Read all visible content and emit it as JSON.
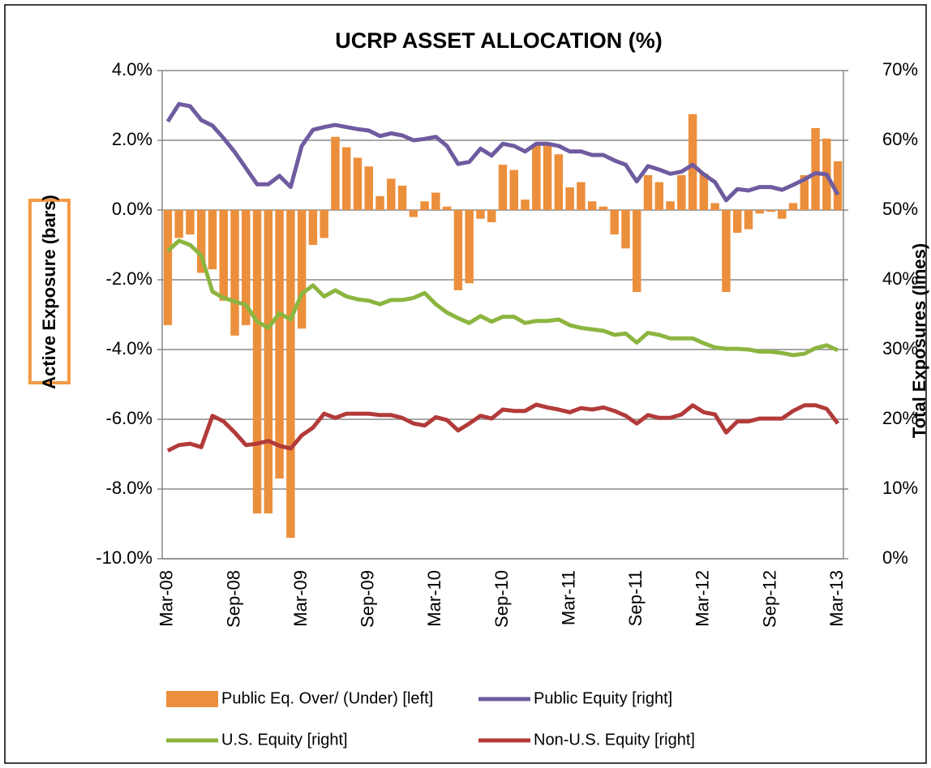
{
  "chart_data": {
    "type": "combo",
    "title": "UCRP ASSET ALLOCATION (%)",
    "y_label": "Active Exposure (bars)",
    "y2_label": "Total Exposures (lines)",
    "categories": [
      "Mar-08",
      null,
      null,
      null,
      null,
      null,
      "Sep-08",
      null,
      null,
      null,
      null,
      null,
      "Mar-09",
      null,
      null,
      null,
      null,
      null,
      "Sep-09",
      null,
      null,
      null,
      null,
      null,
      "Mar-10",
      null,
      null,
      null,
      null,
      null,
      "Sep-10",
      null,
      null,
      null,
      null,
      null,
      "Mar-11",
      null,
      null,
      null,
      null,
      null,
      "Sep-11",
      null,
      null,
      null,
      null,
      null,
      "Mar-12",
      null,
      null,
      null,
      null,
      null,
      "Sep-12",
      null,
      null,
      null,
      null,
      null,
      "Mar-13"
    ],
    "ylim": [
      -10,
      4
    ],
    "yticks": [
      {
        "value": -10,
        "label": "-10.0%"
      },
      {
        "value": -8,
        "label": "-8.0%"
      },
      {
        "value": -6,
        "label": "-6.0%"
      },
      {
        "value": -4,
        "label": "-4.0%"
      },
      {
        "value": -2,
        "label": "-2.0%"
      },
      {
        "value": 0,
        "label": "0.0%"
      },
      {
        "value": 2,
        "label": "2.0%"
      },
      {
        "value": 4,
        "label": "4.0%"
      }
    ],
    "y2lim": [
      0,
      70
    ],
    "y2ticks": [
      {
        "value": 0,
        "label": "0%"
      },
      {
        "value": 10,
        "label": "10%"
      },
      {
        "value": 20,
        "label": "20%"
      },
      {
        "value": 30,
        "label": "30%"
      },
      {
        "value": 40,
        "label": "40%"
      },
      {
        "value": 50,
        "label": "50%"
      },
      {
        "value": 60,
        "label": "60%"
      },
      {
        "value": 70,
        "label": "70%"
      }
    ],
    "grid": true,
    "legend": "bottom",
    "series": [
      {
        "name": "Public Eq. Over/ (Under) [left]",
        "type": "bar",
        "axis": "y",
        "color": "#ec8f3c",
        "values": [
          -3.3,
          -0.8,
          -0.7,
          -1.8,
          -1.7,
          -2.6,
          -3.6,
          -3.3,
          -8.7,
          -8.7,
          -7.7,
          -9.4,
          -3.4,
          -1.0,
          -0.8,
          2.1,
          1.8,
          1.5,
          1.25,
          0.4,
          0.9,
          0.7,
          -0.2,
          0.25,
          0.5,
          0.1,
          -2.3,
          -2.1,
          -0.25,
          -0.35,
          1.3,
          1.15,
          0.3,
          1.9,
          1.85,
          1.6,
          0.65,
          0.8,
          0.25,
          0.1,
          -0.7,
          -1.1,
          -2.35,
          1.0,
          0.8,
          0.25,
          1.0,
          2.75,
          1.05,
          0.2,
          -2.35,
          -0.65,
          -0.55,
          -0.1,
          -0.05,
          -0.25,
          0.2,
          1.0,
          2.35,
          2.05,
          1.4
        ]
      },
      {
        "name": "Public Equity [right]",
        "type": "line",
        "axis": "y2",
        "color": "#6f5b9f",
        "values": [
          62.7,
          65.2,
          64.9,
          62.9,
          62.1,
          60.3,
          58.3,
          56.0,
          53.7,
          53.7,
          54.9,
          53.3,
          59.2,
          61.5,
          61.9,
          62.2,
          61.9,
          61.6,
          61.4,
          60.6,
          61.0,
          60.7,
          60.0,
          60.2,
          60.5,
          59.2,
          56.6,
          56.9,
          58.8,
          57.8,
          59.5,
          59.2,
          58.4,
          59.5,
          59.5,
          59.2,
          58.4,
          58.4,
          57.9,
          57.9,
          57.1,
          56.5,
          54.1,
          56.3,
          55.8,
          55.2,
          55.5,
          56.5,
          55.1,
          54.0,
          51.4,
          53.0,
          52.8,
          53.3,
          53.3,
          52.9,
          53.6,
          54.4,
          55.3,
          55.1,
          52.2
        ]
      },
      {
        "name": "U.S. Equity [right]",
        "type": "line",
        "axis": "y2",
        "color": "#8cb540",
        "values": [
          44.1,
          45.6,
          45.0,
          43.5,
          38.3,
          37.4,
          36.9,
          36.4,
          34.0,
          33.1,
          35.2,
          34.3,
          38.0,
          39.2,
          37.6,
          38.5,
          37.6,
          37.2,
          37.0,
          36.5,
          37.1,
          37.1,
          37.4,
          38.1,
          36.5,
          35.3,
          34.5,
          33.8,
          34.8,
          34.0,
          34.7,
          34.7,
          33.8,
          34.1,
          34.1,
          34.3,
          33.5,
          33.1,
          32.9,
          32.7,
          32.1,
          32.3,
          31.0,
          32.4,
          32.1,
          31.6,
          31.6,
          31.6,
          30.9,
          30.3,
          30.1,
          30.1,
          30.0,
          29.7,
          29.7,
          29.5,
          29.2,
          29.4,
          30.2,
          30.6,
          29.9
        ]
      },
      {
        "name": "Non-U.S. Equity [right]",
        "type": "line",
        "axis": "y2",
        "color": "#b23b3a",
        "values": [
          15.5,
          16.3,
          16.5,
          16.0,
          20.5,
          19.7,
          18.1,
          16.3,
          16.5,
          16.9,
          16.2,
          15.8,
          17.7,
          18.8,
          20.8,
          20.2,
          20.8,
          20.8,
          20.8,
          20.6,
          20.6,
          20.2,
          19.4,
          19.1,
          20.3,
          19.9,
          18.4,
          19.4,
          20.5,
          20.1,
          21.4,
          21.2,
          21.2,
          22.1,
          21.7,
          21.4,
          21.0,
          21.6,
          21.4,
          21.7,
          21.2,
          20.5,
          19.4,
          20.6,
          20.2,
          20.2,
          20.7,
          22.0,
          21.0,
          20.7,
          18.1,
          19.7,
          19.7,
          20.1,
          20.1,
          20.1,
          21.2,
          22.0,
          22.0,
          21.5,
          19.4
        ]
      }
    ]
  }
}
